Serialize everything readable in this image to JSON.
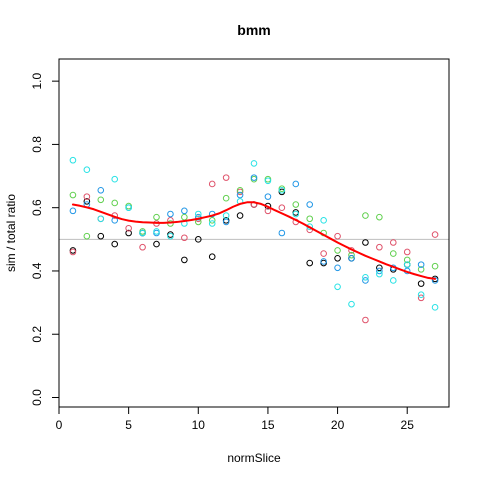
{
  "chart_data": {
    "type": "scatter",
    "title": "bmm",
    "xlabel": "normSlice",
    "ylabel": "sim / total ratio",
    "xlim": [
      0,
      28
    ],
    "ylim": [
      -0.03,
      1.07
    ],
    "xticks": [
      0,
      5,
      10,
      15,
      20,
      25
    ],
    "yticks": [
      0.0,
      0.2,
      0.4,
      0.6,
      0.8,
      1.0
    ],
    "xtick_labels": [
      "0",
      "5",
      "10",
      "15",
      "20",
      "25"
    ],
    "ytick_labels": [
      "0.0",
      "0.2",
      "0.4",
      "0.6",
      "0.8",
      "1.0"
    ],
    "reference_line": {
      "y": 0.5,
      "color": "#bebebe"
    },
    "grid": false,
    "legend": "none",
    "series": [
      {
        "color": "#000000",
        "points": [
          [
            1,
            0.465
          ],
          [
            2,
            0.62
          ],
          [
            3,
            0.51
          ],
          [
            4,
            0.485
          ],
          [
            5,
            0.52
          ],
          [
            6,
            0.52
          ],
          [
            7,
            0.485
          ],
          [
            8,
            0.515
          ],
          [
            9,
            0.435
          ],
          [
            10,
            0.5
          ],
          [
            11,
            0.445
          ],
          [
            12,
            0.56
          ],
          [
            13,
            0.575
          ],
          [
            14,
            0.61
          ],
          [
            15,
            0.605
          ],
          [
            16,
            0.65
          ],
          [
            17,
            0.585
          ],
          [
            18,
            0.425
          ],
          [
            19,
            0.425
          ],
          [
            20,
            0.44
          ],
          [
            21,
            0.44
          ],
          [
            22,
            0.49
          ],
          [
            23,
            0.41
          ],
          [
            24,
            0.405
          ],
          [
            25,
            0.42
          ],
          [
            26,
            0.36
          ],
          [
            27,
            0.375
          ]
        ]
      },
      {
        "color": "#df536b",
        "points": [
          [
            1,
            0.46
          ],
          [
            2,
            0.635
          ],
          [
            3,
            0.565
          ],
          [
            4,
            0.575
          ],
          [
            5,
            0.535
          ],
          [
            6,
            0.475
          ],
          [
            7,
            0.55
          ],
          [
            8,
            0.56
          ],
          [
            9,
            0.505
          ],
          [
            10,
            0.565
          ],
          [
            11,
            0.675
          ],
          [
            12,
            0.695
          ],
          [
            13,
            0.65
          ],
          [
            14,
            0.61
          ],
          [
            15,
            0.59
          ],
          [
            16,
            0.6
          ],
          [
            17,
            0.555
          ],
          [
            18,
            0.53
          ],
          [
            19,
            0.455
          ],
          [
            20,
            0.51
          ],
          [
            21,
            0.465
          ],
          [
            22,
            0.245
          ],
          [
            23,
            0.475
          ],
          [
            24,
            0.49
          ],
          [
            25,
            0.46
          ],
          [
            26,
            0.315
          ],
          [
            27,
            0.515
          ]
        ]
      },
      {
        "color": "#61d04f",
        "points": [
          [
            1,
            0.64
          ],
          [
            2,
            0.51
          ],
          [
            3,
            0.625
          ],
          [
            4,
            0.615
          ],
          [
            5,
            0.605
          ],
          [
            6,
            0.525
          ],
          [
            7,
            0.57
          ],
          [
            8,
            0.55
          ],
          [
            9,
            0.57
          ],
          [
            10,
            0.555
          ],
          [
            11,
            0.56
          ],
          [
            12,
            0.63
          ],
          [
            13,
            0.655
          ],
          [
            14,
            0.69
          ],
          [
            15,
            0.69
          ],
          [
            16,
            0.66
          ],
          [
            17,
            0.61
          ],
          [
            18,
            0.565
          ],
          [
            19,
            0.52
          ],
          [
            20,
            0.465
          ],
          [
            21,
            0.45
          ],
          [
            22,
            0.575
          ],
          [
            23,
            0.57
          ],
          [
            24,
            0.455
          ],
          [
            25,
            0.435
          ],
          [
            26,
            0.405
          ],
          [
            27,
            0.415
          ]
        ]
      },
      {
        "color": "#2297e6",
        "points": [
          [
            1,
            0.59
          ],
          [
            2,
            0.61
          ],
          [
            3,
            0.655
          ],
          [
            4,
            0.56
          ],
          [
            5,
            0.6
          ],
          [
            6,
            0.52
          ],
          [
            7,
            0.52
          ],
          [
            8,
            0.58
          ],
          [
            9,
            0.59
          ],
          [
            10,
            0.57
          ],
          [
            11,
            0.58
          ],
          [
            12,
            0.555
          ],
          [
            13,
            0.64
          ],
          [
            14,
            0.695
          ],
          [
            15,
            0.635
          ],
          [
            16,
            0.52
          ],
          [
            17,
            0.675
          ],
          [
            18,
            0.61
          ],
          [
            19,
            0.43
          ],
          [
            20,
            0.41
          ],
          [
            21,
            0.44
          ],
          [
            22,
            0.37
          ],
          [
            23,
            0.4
          ],
          [
            24,
            0.41
          ],
          [
            25,
            0.4
          ],
          [
            26,
            0.42
          ],
          [
            27,
            0.37
          ]
        ]
      },
      {
        "color": "#28e2e5",
        "points": [
          [
            1,
            0.75
          ],
          [
            2,
            0.72
          ],
          [
            3,
            0.565
          ],
          [
            4,
            0.69
          ],
          [
            5,
            0.6
          ],
          [
            6,
            0.52
          ],
          [
            7,
            0.525
          ],
          [
            8,
            0.51
          ],
          [
            9,
            0.55
          ],
          [
            10,
            0.58
          ],
          [
            11,
            0.55
          ],
          [
            12,
            0.575
          ],
          [
            13,
            0.62
          ],
          [
            14,
            0.74
          ],
          [
            15,
            0.685
          ],
          [
            16,
            0.655
          ],
          [
            17,
            0.58
          ],
          [
            18,
            0.54
          ],
          [
            19,
            0.56
          ],
          [
            20,
            0.35
          ],
          [
            21,
            0.295
          ],
          [
            22,
            0.38
          ],
          [
            23,
            0.39
          ],
          [
            24,
            0.37
          ],
          [
            25,
            0.42
          ],
          [
            26,
            0.325
          ],
          [
            27,
            0.285
          ]
        ]
      }
    ],
    "smooth_line": {
      "color": "#ff0000",
      "x": [
        1,
        1.5,
        2,
        2.5,
        3,
        3.5,
        4,
        4.5,
        5,
        5.5,
        6,
        6.5,
        7,
        7.5,
        8,
        8.5,
        9,
        9.5,
        10,
        10.5,
        11,
        11.5,
        12,
        12.5,
        13,
        13.5,
        14,
        14.5,
        15,
        15.5,
        16,
        16.5,
        17,
        17.5,
        18,
        18.5,
        19,
        19.5,
        20,
        20.5,
        21,
        21.5,
        22,
        22.5,
        23,
        23.5,
        24,
        24.5,
        25,
        25.5,
        26,
        26.5,
        27
      ],
      "y": [
        0.61,
        0.606,
        0.601,
        0.595,
        0.587,
        0.579,
        0.571,
        0.564,
        0.559,
        0.556,
        0.554,
        0.553,
        0.552,
        0.552,
        0.553,
        0.555,
        0.558,
        0.561,
        0.565,
        0.57,
        0.575,
        0.582,
        0.592,
        0.603,
        0.612,
        0.617,
        0.617,
        0.612,
        0.603,
        0.592,
        0.582,
        0.572,
        0.561,
        0.55,
        0.538,
        0.526,
        0.514,
        0.502,
        0.49,
        0.479,
        0.468,
        0.458,
        0.448,
        0.439,
        0.43,
        0.421,
        0.413,
        0.405,
        0.397,
        0.39,
        0.384,
        0.378,
        0.375
      ]
    }
  }
}
